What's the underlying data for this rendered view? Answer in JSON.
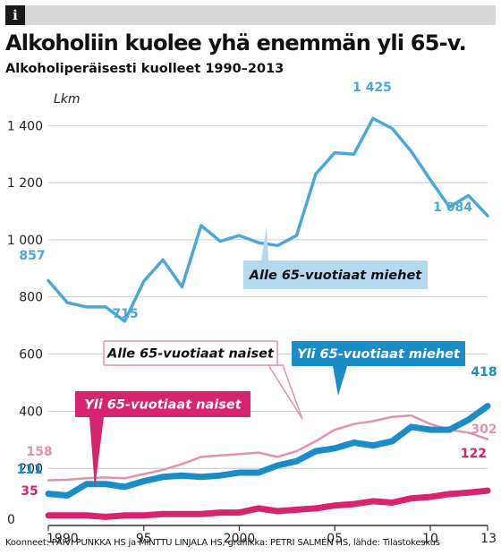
{
  "header": {
    "info_icon": "info-icon"
  },
  "title": "Alkoholiin kuolee yhä enemmän yli 65-v.",
  "subtitle": "Alkoholiperäisesti kuolleet 1990–2013",
  "footer": "Koonneet: PÄIVI PUNKKA HS ja MINTTU LINJALA HS, grafiikka: PETRI SALMÉN HS, lähde: Tilastokeskus",
  "chart_data": {
    "type": "line",
    "ylabel": "Lkm",
    "ylim": [
      0,
      1500
    ],
    "xlim": [
      1990,
      2013
    ],
    "y_ticks": [
      0,
      200,
      400,
      600,
      800,
      1000,
      1200,
      1400
    ],
    "y_tick_labels": [
      "0",
      "200",
      "400",
      "600",
      "800",
      "1 000",
      "1 200",
      "1 400"
    ],
    "x_ticks": [
      1990,
      1995,
      2000,
      2005,
      2010,
      2013
    ],
    "x_tick_labels": [
      "1990",
      "95",
      "2000",
      "05",
      "10",
      "13"
    ],
    "grid": true,
    "x": [
      1990,
      1991,
      1992,
      1993,
      1994,
      1995,
      1996,
      1997,
      1998,
      1999,
      2000,
      2001,
      2002,
      2003,
      2004,
      2005,
      2006,
      2007,
      2008,
      2009,
      2010,
      2011,
      2012,
      2013
    ],
    "series": [
      {
        "name": "Alle 65-vuotiaat miehet",
        "color": "#4aa8d8",
        "values": [
          857,
          780,
          765,
          765,
          715,
          855,
          930,
          835,
          1050,
          995,
          1015,
          990,
          980,
          1015,
          1230,
          1305,
          1300,
          1425,
          1390,
          1310,
          1210,
          1115,
          1155,
          1084
        ],
        "labels": {
          "first": "857",
          "min": "715",
          "max": "1 425",
          "last": "1 084"
        }
      },
      {
        "name": "Alle 65-vuotiaat naiset",
        "color": "#e391ac",
        "values": [
          158,
          160,
          165,
          168,
          165,
          180,
          195,
          215,
          240,
          245,
          250,
          255,
          240,
          260,
          295,
          335,
          355,
          365,
          380,
          385,
          355,
          335,
          325,
          302
        ],
        "labels": {
          "first": "158",
          "last": "302"
        }
      },
      {
        "name": "Yli 65-vuotiaat miehet",
        "color": "#1a8dc8",
        "values": [
          111,
          105,
          145,
          145,
          135,
          155,
          170,
          175,
          170,
          175,
          185,
          185,
          210,
          225,
          260,
          270,
          290,
          280,
          295,
          345,
          335,
          335,
          370,
          418
        ],
        "labels": {
          "first": "111",
          "last": "418"
        }
      },
      {
        "name": "Yli 65-vuotiaat naiset",
        "color": "#d6246e",
        "values": [
          35,
          35,
          35,
          30,
          35,
          35,
          40,
          40,
          40,
          45,
          45,
          60,
          50,
          55,
          60,
          70,
          75,
          85,
          80,
          95,
          100,
          110,
          115,
          122
        ],
        "labels": {
          "first": "35",
          "last": "122"
        }
      }
    ]
  }
}
